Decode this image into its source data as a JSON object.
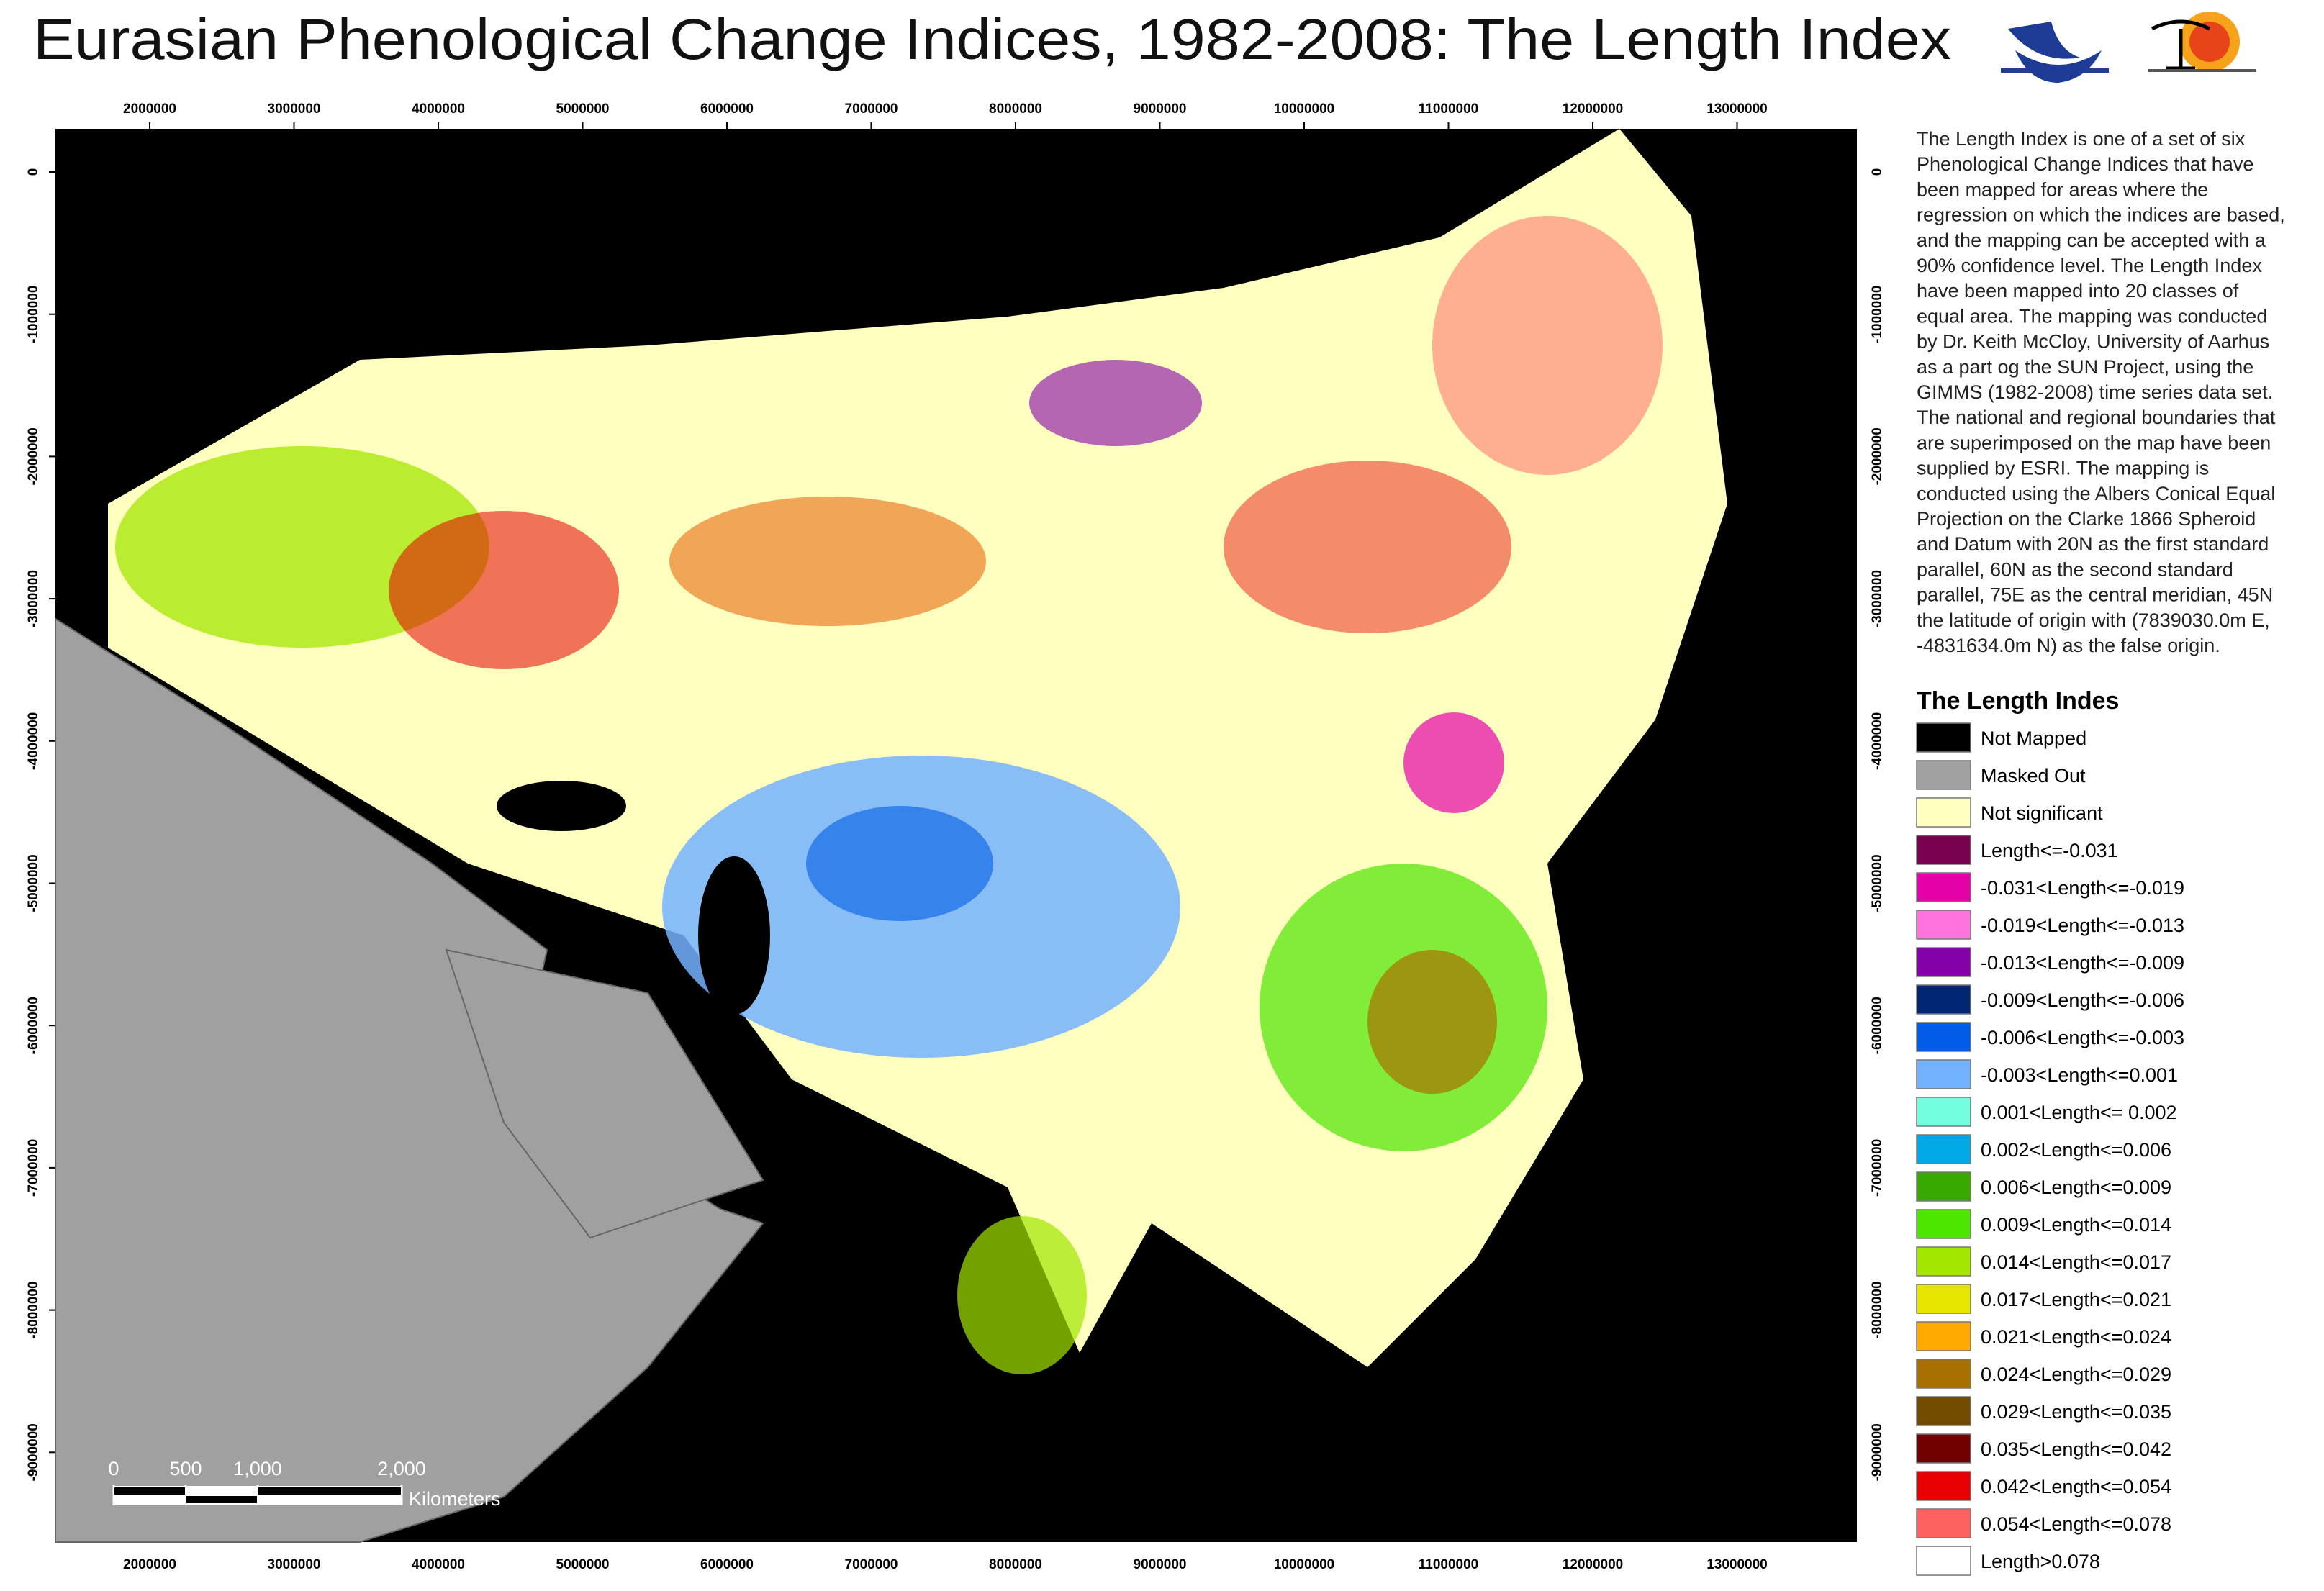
{
  "title": "Eurasian Phenological Change Indices, 1982-2008: The Length Index",
  "map": {
    "x_ticks": [
      2000000,
      3000000,
      4000000,
      5000000,
      6000000,
      7000000,
      8000000,
      9000000,
      10000000,
      11000000,
      12000000,
      13000000
    ],
    "y_ticks": [
      0,
      -1000000,
      -2000000,
      -3000000,
      -4000000,
      -5000000,
      -6000000,
      -7000000,
      -8000000,
      -9000000
    ],
    "scale_bar": {
      "ticks": [
        0,
        500,
        {
          "value": 1000,
          "label": "1,000"
        },
        {
          "value": 2000,
          "label": "2,000"
        }
      ],
      "unit": "Kilometers"
    }
  },
  "description": [
    "The Length Index is one of a set of six",
    "Phenological Change Indices that have",
    "been mapped for areas where the",
    "regression on which the indices are based,",
    "and the mapping can be accepted with a",
    "90% confidence level. The Length Index",
    "have been mapped into 20 classes of",
    "equal area. The mapping was conducted",
    "by Dr. Keith McCloy, University of Aarhus",
    "as a part og the SUN Project, using the",
    "GIMMS (1982-2008) time series data set.",
    "The national and regional boundaries that",
    "are superimposed on the map have been",
    "supplied by ESRI. The mapping is",
    "conducted using the Albers Conical Equal",
    "Projection on the Clarke 1866 Spheroid",
    "and Datum with 20N as the first standard",
    "parallel, 60N as the second standard",
    "parallel, 75E as the central meridian, 45N",
    "the latitude of origin with (7839030.0m E,",
    "-4831634.0m N) as the false origin."
  ],
  "legend": {
    "title": "The Length Indes",
    "items": [
      {
        "label": "Not Mapped",
        "color": "#000000"
      },
      {
        "label": "Masked Out",
        "color": "#a0a0a0"
      },
      {
        "label": "Not significant",
        "color": "#ffffc0"
      },
      {
        "label": "Length<=-0.031",
        "color": "#7a0050"
      },
      {
        "label": "-0.031<Length<=-0.019",
        "color": "#e600a9"
      },
      {
        "label": "-0.019<Length<=-0.013",
        "color": "#ff73df"
      },
      {
        "label": "-0.013<Length<=-0.009",
        "color": "#8400a8"
      },
      {
        "label": "-0.009<Length<=-0.006",
        "color": "#002673"
      },
      {
        "label": "-0.006<Length<=-0.003",
        "color": "#005ce6"
      },
      {
        "label": "-0.003<Length<=0.001",
        "color": "#73b2ff"
      },
      {
        "label": "0.001<Length<= 0.002",
        "color": "#73ffdf"
      },
      {
        "label": "0.002<Length<=0.006",
        "color": "#00a9e6"
      },
      {
        "label": "0.006<Length<=0.009",
        "color": "#38a800"
      },
      {
        "label": "0.009<Length<=0.014",
        "color": "#4ce600"
      },
      {
        "label": "0.014<Length<=0.017",
        "color": "#a3e600"
      },
      {
        "label": "0.017<Length<=0.021",
        "color": "#e6e600"
      },
      {
        "label": "0.021<Length<=0.024",
        "color": "#ffaa00"
      },
      {
        "label": "0.024<Length<=0.029",
        "color": "#a87000"
      },
      {
        "label": "0.029<Length<=0.035",
        "color": "#734c00"
      },
      {
        "label": "0.035<Length<=0.042",
        "color": "#730000"
      },
      {
        "label": "0.042<Length<=0.054",
        "color": "#e60000"
      },
      {
        "label": "0.054<Length<=0.078",
        "color": "#ff6060"
      },
      {
        "label": "Length>0.078",
        "color": "#ffffff"
      }
    ]
  }
}
